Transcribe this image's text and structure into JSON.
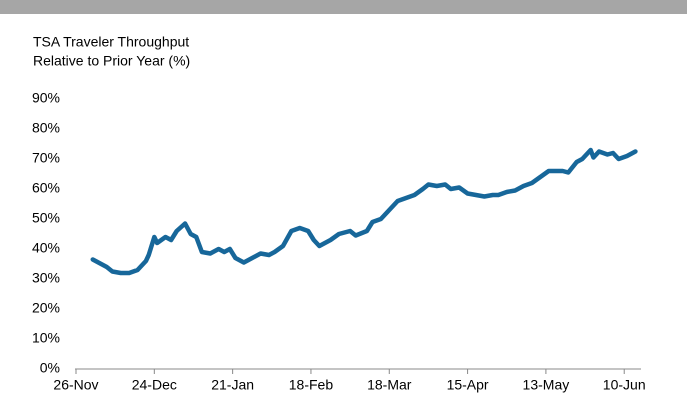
{
  "chart_data": {
    "type": "line",
    "title": [
      "TSA Traveler Throughput",
      "Relative to Prior Year (%)"
    ],
    "x": [
      6,
      9,
      11,
      13,
      16,
      19,
      22,
      25,
      26,
      28,
      29,
      32,
      34,
      36,
      39,
      41,
      43,
      45,
      48,
      51,
      53,
      55,
      57,
      60,
      63,
      66,
      69,
      71,
      74,
      77,
      80,
      83,
      85,
      87,
      91,
      94,
      98,
      100,
      104,
      106,
      109,
      112,
      115,
      118,
      121,
      124,
      126,
      129,
      132,
      134,
      137,
      140,
      143,
      146,
      149,
      151,
      154,
      157,
      160,
      163,
      166,
      169,
      171,
      174,
      176,
      179,
      181,
      184,
      185,
      187,
      190,
      192,
      194,
      197,
      200
    ],
    "series": [
      {
        "name": "TSA Traveler Throughput Relative to Prior Year",
        "color": "#17679a",
        "values": [
          36.5,
          35,
          34,
          32.5,
          32,
          32,
          33,
          36,
          38,
          44,
          42,
          44,
          43,
          46,
          48.5,
          45,
          44,
          39,
          38.5,
          40,
          39,
          40,
          37,
          35.5,
          37,
          38.5,
          38,
          39,
          41,
          46,
          47,
          46,
          43,
          41,
          43,
          45,
          46,
          44.5,
          46,
          49,
          50,
          53,
          56,
          57,
          58,
          60,
          61.5,
          61,
          61.5,
          60,
          60.5,
          58.5,
          58,
          57.5,
          58,
          58,
          59,
          59.5,
          61,
          62,
          64,
          66,
          66,
          66,
          65.5,
          69,
          70,
          73,
          70.5,
          72.5,
          71.5,
          72,
          70,
          71,
          72.5
        ]
      }
    ],
    "xlim": [
      0,
      202
    ],
    "xticks": [
      {
        "value": 0,
        "label": "26-Nov"
      },
      {
        "value": 28,
        "label": "24-Dec"
      },
      {
        "value": 56,
        "label": "21-Jan"
      },
      {
        "value": 84,
        "label": "18-Feb"
      },
      {
        "value": 112,
        "label": "18-Mar"
      },
      {
        "value": 140,
        "label": "15-Apr"
      },
      {
        "value": 168,
        "label": "13-May"
      },
      {
        "value": 196,
        "label": "10-Jun"
      }
    ],
    "ylim": [
      0,
      90
    ],
    "yticks": [
      {
        "value": 0,
        "label": "0%"
      },
      {
        "value": 10,
        "label": "10%"
      },
      {
        "value": 20,
        "label": "20%"
      },
      {
        "value": 30,
        "label": "30%"
      },
      {
        "value": 40,
        "label": "40%"
      },
      {
        "value": 50,
        "label": "50%"
      },
      {
        "value": 60,
        "label": "60%"
      },
      {
        "value": 70,
        "label": "70%"
      },
      {
        "value": 80,
        "label": "80%"
      },
      {
        "value": 90,
        "label": "90%"
      }
    ],
    "grid": false
  }
}
